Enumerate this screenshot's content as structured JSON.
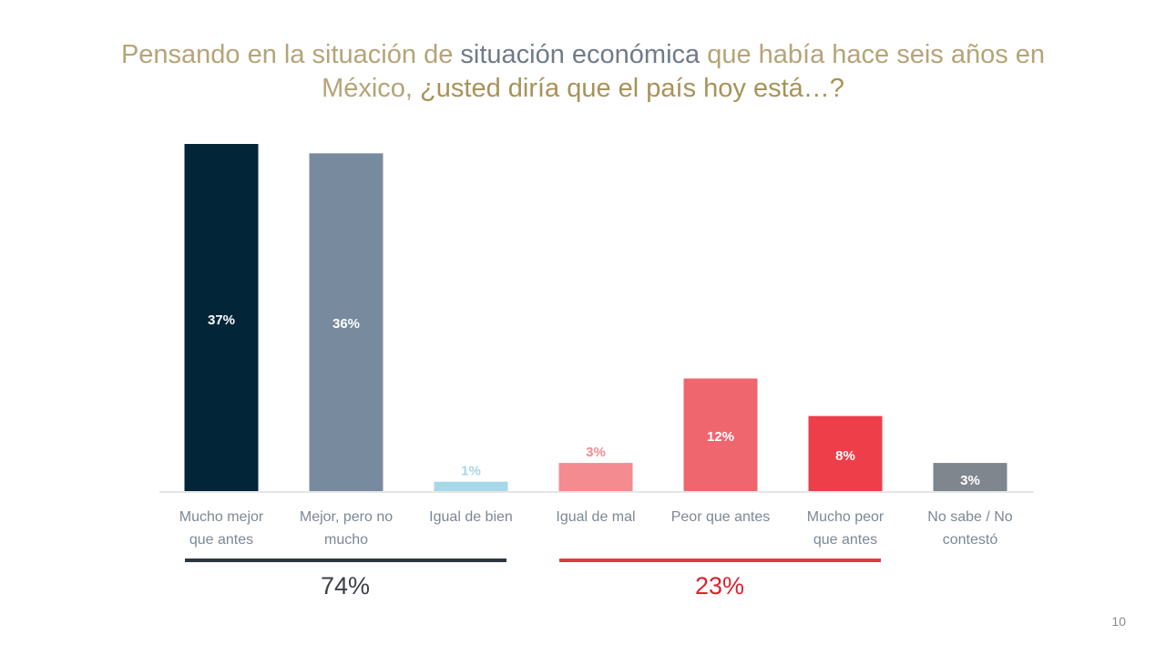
{
  "title": {
    "part1": "Pensando en la situación de ",
    "part2": "situación económica",
    "part3": " que había hace seis años en México, ",
    "part4": "¿usted diría que el país hoy está…?"
  },
  "chart_data": {
    "type": "bar",
    "title": "Pensando en la situación de situación económica que había hace seis años en México, ¿usted diría que el país hoy está…?",
    "xlabel": "",
    "ylabel": "",
    "ylim": [
      0,
      37
    ],
    "grid": false,
    "categories": [
      [
        "Mucho mejor",
        "que antes"
      ],
      [
        "Mejor, pero no",
        "mucho"
      ],
      [
        "Igual de bien"
      ],
      [
        "Igual de mal"
      ],
      [
        "Peor que antes"
      ],
      [
        "Mucho peor",
        "que antes"
      ],
      [
        "No sabe / No",
        "contestó"
      ]
    ],
    "values": [
      37,
      36,
      1,
      3,
      12,
      8,
      3
    ],
    "value_labels": [
      "37%",
      "36%",
      "1%",
      "3%",
      "12%",
      "8%",
      "3%"
    ],
    "colors": [
      "#032538",
      "#788b9e",
      "#a7d8e8",
      "#f38b90",
      "#f0666f",
      "#ee3e4a",
      "#7f868e"
    ],
    "label_colors": [
      "#ffffff",
      "#ffffff",
      "#a7d8e8",
      "#f38b90",
      "#ffffff",
      "#ffffff",
      "#ffffff"
    ],
    "label_inside": [
      true,
      true,
      false,
      false,
      true,
      true,
      true
    ],
    "groups": [
      {
        "label": "74%",
        "from": 0,
        "to": 2,
        "color": "#2e3640",
        "text_color": "#3a4048"
      },
      {
        "label": "23%",
        "from": 3,
        "to": 5,
        "color": "#e03a47",
        "text_color": "#e0202c"
      }
    ]
  },
  "page_number": "10"
}
